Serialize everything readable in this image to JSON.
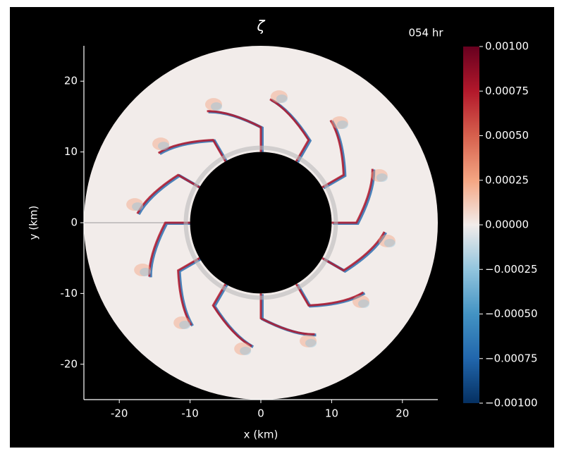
{
  "chart_data": {
    "type": "field",
    "title": "ζ",
    "annotation": "054 hr",
    "x_label": "x (km)",
    "y_label": "y (km)",
    "xlim": [
      -25,
      25
    ],
    "ylim": [
      -25,
      25
    ],
    "xticks": [
      -20,
      -10,
      0,
      10,
      20
    ],
    "yticks": [
      -20,
      -10,
      0,
      10,
      20
    ],
    "clim": [
      -0.001,
      0.001
    ],
    "colorbar_ticks": [
      {
        "value": 0.001,
        "label": "0.00100"
      },
      {
        "value": 0.00075,
        "label": "0.00075"
      },
      {
        "value": 0.0005,
        "label": "0.00050"
      },
      {
        "value": 0.00025,
        "label": "0.00025"
      },
      {
        "value": 0,
        "label": "0.00000"
      },
      {
        "value": -0.00025,
        "label": "−0.00025"
      },
      {
        "value": -0.0005,
        "label": "−0.00050"
      },
      {
        "value": -0.00075,
        "label": "−0.00075"
      },
      {
        "value": -0.001,
        "label": "−0.00100"
      }
    ],
    "colormap": [
      "#053061",
      "#2166ac",
      "#4393c3",
      "#92c5de",
      "#f2ecea",
      "#f4a582",
      "#d6604d",
      "#b2182b",
      "#67001f"
    ]
  }
}
